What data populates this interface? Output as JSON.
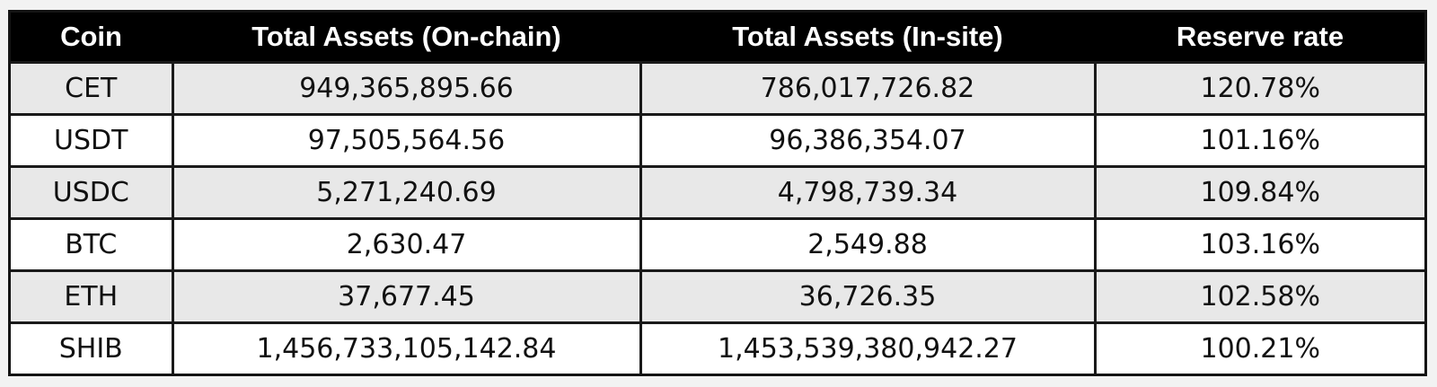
{
  "chart_data": {
    "type": "table",
    "columns": [
      "Coin",
      "Total Assets (On-chain)",
      "Total Assets (In-site)",
      "Reserve rate"
    ],
    "rows": [
      [
        "CET",
        "949,365,895.66",
        "786,017,726.82",
        "120.78%"
      ],
      [
        "USDT",
        "97,505,564.56",
        "96,386,354.07",
        "101.16%"
      ],
      [
        "USDC",
        "5,271,240.69",
        "4,798,739.34",
        "109.84%"
      ],
      [
        "BTC",
        "2,630.47",
        "2,549.88",
        "103.16%"
      ],
      [
        "ETH",
        "37,677.45",
        "36,726.35",
        "102.58%"
      ],
      [
        "SHIB",
        "1,456,733,105,142.84",
        "1,453,539,380,942.27",
        "100.21%"
      ]
    ],
    "header_background": "#000000",
    "header_text_color": "#ffffff",
    "row_stripe_color": "#e8e8e8",
    "row_plain_color": "#ffffff"
  }
}
